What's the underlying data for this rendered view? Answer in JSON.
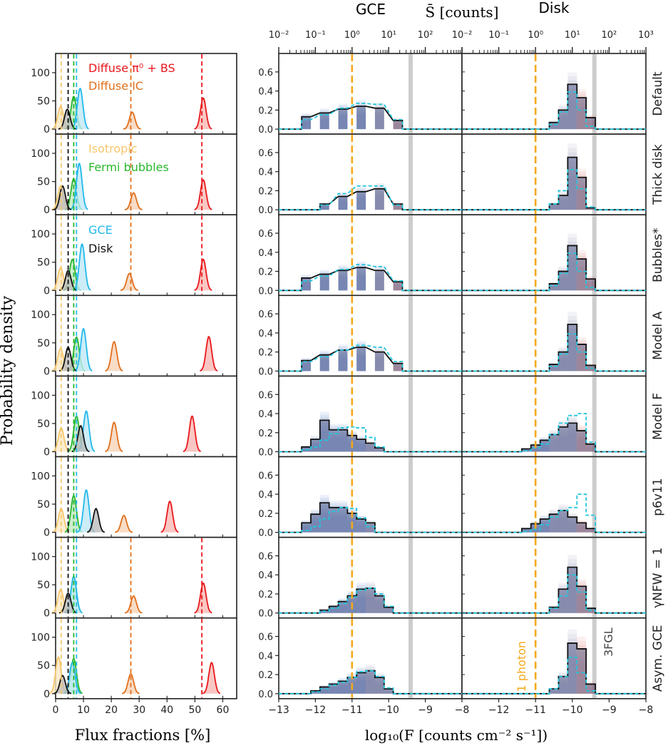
{
  "chart_data": [
    {
      "panel": "left",
      "type": "area",
      "xlabel": "Flux fractions [%]",
      "ylabel": "Probability density",
      "xlim": [
        0,
        65
      ],
      "ylim": [
        0,
        120
      ],
      "xticks": [
        "0",
        "10",
        "20",
        "30",
        "40",
        "50",
        "60"
      ],
      "yticks": [
        "0",
        "50",
        "100"
      ],
      "grid": false,
      "legend_entries": [
        {
          "label": "Diffuse π⁰ + BS",
          "color": "#e8171c",
          "row": 0
        },
        {
          "label": "Diffuse IC",
          "color": "#e06f1b",
          "row": 0
        },
        {
          "label": "Isotropic",
          "color": "#f6c66c",
          "row": 1
        },
        {
          "label": "Fermi bubbles",
          "color": "#28b82d",
          "row": 1
        },
        {
          "label": "GCE",
          "color": "#21b8ea",
          "row": 2
        },
        {
          "label": "Disk",
          "color": "#111111",
          "row": 2
        }
      ],
      "reference_lines": {
        "pi0_bs": 52.5,
        "ic": 27.0,
        "isotropic": 2.0,
        "bubbles": 6.5,
        "gce": 7.5,
        "disk": 4.5
      },
      "components": [
        "pi0_bs",
        "ic",
        "isotropic",
        "bubbles",
        "gce",
        "disk"
      ],
      "rows": [
        {
          "name": "Default",
          "peaks": {
            "pi0_bs": [
              53.0,
              55
            ],
            "ic": [
              27.5,
              30
            ],
            "isotropic": [
              1.8,
              40
            ],
            "bubbles": [
              6.5,
              58
            ],
            "gce": [
              8.8,
              72
            ],
            "disk": [
              4.2,
              35
            ]
          }
        },
        {
          "name": "Thick disk",
          "peaks": {
            "pi0_bs": [
              53.0,
              53
            ],
            "ic": [
              28.0,
              30
            ],
            "isotropic": [
              1.8,
              42
            ],
            "bubbles": [
              6.5,
              55
            ],
            "gce": [
              8.5,
              82
            ],
            "disk": [
              2.5,
              42
            ]
          }
        },
        {
          "name": "Bubbles*",
          "peaks": {
            "pi0_bs": [
              53.0,
              55
            ],
            "ic": [
              26.5,
              30
            ],
            "isotropic": [
              1.8,
              40
            ],
            "bubbles": [
              6.0,
              55
            ],
            "gce": [
              9.5,
              82
            ],
            "disk": [
              4.5,
              35
            ]
          }
        },
        {
          "name": "Model A",
          "peaks": {
            "pi0_bs": [
              55.0,
              61
            ],
            "ic": [
              21.0,
              52
            ],
            "isotropic": [
              1.8,
              40
            ],
            "bubbles": [
              7.5,
              60
            ],
            "gce": [
              10.0,
              75
            ],
            "disk": [
              4.5,
              42
            ]
          }
        },
        {
          "name": "Model F",
          "peaks": {
            "pi0_bs": [
              49.0,
              63
            ],
            "ic": [
              21.0,
              52
            ],
            "isotropic": [
              2.0,
              42
            ],
            "bubbles": [
              7.5,
              63
            ],
            "gce": [
              11.0,
              72
            ],
            "disk": [
              9.0,
              46
            ]
          }
        },
        {
          "name": "p6v11",
          "peaks": {
            "pi0_bs": [
              41.0,
              55
            ],
            "ic": [
              24.5,
              30
            ],
            "isotropic": [
              2.0,
              42
            ],
            "bubbles": [
              6.5,
              65
            ],
            "gce": [
              11.0,
              75
            ],
            "disk": [
              14.5,
              42
            ]
          }
        },
        {
          "name": "γNFW = 1",
          "peaks": {
            "pi0_bs": [
              53.0,
              53
            ],
            "ic": [
              28.0,
              30
            ],
            "isotropic": [
              1.8,
              42
            ],
            "bubbles": [
              6.5,
              60
            ],
            "gce": [
              6.5,
              65
            ],
            "disk": [
              4.5,
              35
            ]
          }
        },
        {
          "name": "Asym. GCE",
          "peaks": {
            "pi0_bs": [
              56.0,
              55
            ],
            "ic": [
              27.0,
              35
            ],
            "isotropic": [
              1.0,
              65
            ],
            "bubbles": [
              6.5,
              62
            ],
            "gce": [
              6.0,
              55
            ],
            "disk": [
              2.5,
              32
            ]
          }
        }
      ]
    },
    {
      "panel": "right",
      "type": "bar",
      "column_titles": [
        "GCE",
        "Disk"
      ],
      "top_axis_label": "S̄ [counts]",
      "top_ticks": [
        "10⁻²",
        "10⁻¹",
        "10⁰",
        "10¹",
        "10²"
      ],
      "top_ticks_last": "10³",
      "xlabel": "log₁₀(F [counts cm⁻² s⁻¹])",
      "xlim": [
        -13,
        -8
      ],
      "xticks": [
        "−13",
        "−12",
        "−11",
        "−10",
        "−9",
        "−8"
      ],
      "ylim": [
        0,
        0.8
      ],
      "yticks": [
        "0.0",
        "0.2",
        "0.4",
        "0.6"
      ],
      "bin_width": 0.25,
      "one_photon_flux": -11.0,
      "one_photon_label": "1 photon",
      "threshold_3fgl_flux": -9.4,
      "threshold_3fgl_label": "3FGL",
      "row_labels": [
        "Default",
        "Thick disk",
        "Bubbles*",
        "Model A",
        "Model F",
        "p6v11",
        "γNFW = 1",
        "Asym. GCE"
      ],
      "rows": [
        {
          "name": "Default",
          "gce": {
            "centers": [
              -12.25,
              -11.75,
              -11.25,
              -10.75,
              -10.25,
              -9.75
            ],
            "median": [
              0.13,
              0.17,
              0.21,
              0.24,
              0.22,
              0.09
            ],
            "reference": [
              0.1,
              0.15,
              0.22,
              0.27,
              0.26,
              0.1
            ]
          },
          "disk": {
            "centers": [
              -10.5,
              -10.25,
              -10.0,
              -9.75,
              -9.5
            ],
            "median": [
              0.07,
              0.2,
              0.47,
              0.33,
              0.12
            ],
            "reference": [
              0.05,
              0.18,
              0.39,
              0.2,
              0.03
            ]
          }
        },
        {
          "name": "Thick disk",
          "gce": {
            "centers": [
              -11.75,
              -11.25,
              -10.75,
              -10.25,
              -9.75
            ],
            "median": [
              0.06,
              0.14,
              0.19,
              0.22,
              0.06
            ],
            "reference": [
              0.05,
              0.17,
              0.25,
              0.25,
              0.05
            ]
          },
          "disk": {
            "centers": [
              -10.5,
              -10.25,
              -10.0,
              -9.75,
              -9.5
            ],
            "median": [
              0.06,
              0.15,
              0.55,
              0.34,
              0.02
            ],
            "reference": [
              0.06,
              0.2,
              0.42,
              0.22,
              0.03
            ]
          }
        },
        {
          "name": "Bubbles*",
          "gce": {
            "centers": [
              -12.25,
              -11.75,
              -11.25,
              -10.75,
              -10.25,
              -9.75
            ],
            "median": [
              0.13,
              0.17,
              0.21,
              0.24,
              0.21,
              0.09
            ],
            "reference": [
              0.1,
              0.15,
              0.22,
              0.27,
              0.25,
              0.1
            ]
          },
          "disk": {
            "centers": [
              -10.5,
              -10.25,
              -10.0,
              -9.75,
              -9.5
            ],
            "median": [
              0.07,
              0.2,
              0.47,
              0.33,
              0.12
            ],
            "reference": [
              0.05,
              0.18,
              0.39,
              0.2,
              0.03
            ]
          }
        },
        {
          "name": "Model A",
          "gce": {
            "centers": [
              -12.25,
              -11.75,
              -11.25,
              -10.75,
              -10.25,
              -9.75
            ],
            "median": [
              0.11,
              0.17,
              0.22,
              0.25,
              0.2,
              0.08
            ],
            "reference": [
              0.1,
              0.15,
              0.22,
              0.27,
              0.25,
              0.1
            ]
          },
          "disk": {
            "centers": [
              -10.5,
              -10.25,
              -10.0,
              -9.75,
              -9.5
            ],
            "median": [
              0.07,
              0.2,
              0.49,
              0.28,
              0.06
            ],
            "reference": [
              0.05,
              0.18,
              0.39,
              0.2,
              0.03
            ]
          }
        },
        {
          "name": "Model F",
          "gce": {
            "centers": [
              -12.25,
              -12.0,
              -11.75,
              -11.5,
              -11.25,
              -11.0,
              -10.75,
              -10.5,
              -10.25
            ],
            "median": [
              0.05,
              0.13,
              0.33,
              0.23,
              0.23,
              0.17,
              0.13,
              0.09,
              0.04
            ],
            "reference": [
              0.02,
              0.05,
              0.12,
              0.19,
              0.25,
              0.26,
              0.25,
              0.15,
              0.05
            ]
          },
          "disk": {
            "centers": [
              -11.25,
              -11.0,
              -10.75,
              -10.5,
              -10.25,
              -10.0,
              -9.75,
              -9.5
            ],
            "median": [
              0.03,
              0.07,
              0.12,
              0.18,
              0.26,
              0.3,
              0.22,
              0.08
            ],
            "reference": [
              0.01,
              0.04,
              0.08,
              0.18,
              0.3,
              0.38,
              0.4,
              0.1
            ]
          }
        },
        {
          "name": "p6v11",
          "gce": {
            "centers": [
              -12.25,
              -12.0,
              -11.75,
              -11.5,
              -11.25,
              -11.0,
              -10.75,
              -10.5
            ],
            "median": [
              0.1,
              0.19,
              0.31,
              0.26,
              0.26,
              0.2,
              0.14,
              0.1
            ],
            "reference": [
              0.02,
              0.06,
              0.14,
              0.22,
              0.26,
              0.25,
              0.15,
              0.06
            ]
          },
          "disk": {
            "centers": [
              -11.25,
              -11.0,
              -10.75,
              -10.5,
              -10.25,
              -10.0,
              -9.75,
              -9.5
            ],
            "median": [
              0.04,
              0.09,
              0.14,
              0.19,
              0.23,
              0.16,
              0.1,
              0.04
            ],
            "reference": [
              0.01,
              0.03,
              0.08,
              0.16,
              0.23,
              0.26,
              0.4,
              0.18
            ]
          }
        },
        {
          "name": "γNFW = 1",
          "gce": {
            "centers": [
              -11.75,
              -11.5,
              -11.25,
              -11.0,
              -10.75,
              -10.5,
              -10.25,
              -10.0
            ],
            "median": [
              0.03,
              0.07,
              0.12,
              0.18,
              0.25,
              0.26,
              0.18,
              0.06
            ],
            "reference": [
              0.02,
              0.05,
              0.1,
              0.17,
              0.24,
              0.26,
              0.2,
              0.07
            ]
          },
          "disk": {
            "centers": [
              -10.5,
              -10.25,
              -10.0,
              -9.75,
              -9.5
            ],
            "median": [
              0.06,
              0.25,
              0.48,
              0.28,
              0.05
            ],
            "reference": [
              0.05,
              0.18,
              0.4,
              0.22,
              0.03
            ]
          }
        },
        {
          "name": "Asym. GCE",
          "gce": {
            "centers": [
              -12.0,
              -11.75,
              -11.5,
              -11.25,
              -11.0,
              -10.75,
              -10.5,
              -10.25,
              -10.0
            ],
            "median": [
              0.03,
              0.07,
              0.1,
              0.13,
              0.17,
              0.22,
              0.24,
              0.17,
              0.05
            ],
            "reference": [
              0.02,
              0.05,
              0.09,
              0.12,
              0.17,
              0.23,
              0.24,
              0.18,
              0.06
            ]
          },
          "disk": {
            "centers": [
              -10.5,
              -10.25,
              -10.0,
              -9.75,
              -9.5
            ],
            "median": [
              0.05,
              0.18,
              0.53,
              0.47,
              0.1
            ],
            "reference": [
              0.05,
              0.18,
              0.38,
              0.22,
              0.03
            ]
          }
        }
      ]
    }
  ],
  "colors": {
    "pi0_bs": "#e8171c",
    "ic": "#e06f1b",
    "isotropic": "#f6c66c",
    "bubbles": "#28b82d",
    "gce": "#21b8ea",
    "disk": "#111111",
    "hist_blue": "#4a76c9",
    "hist_red": "#d9736a",
    "median_line": "#111111",
    "reference_line": "#21c6dc",
    "one_photon": "#f4a81c",
    "threshold_3fgl": "#c8c8c8"
  }
}
